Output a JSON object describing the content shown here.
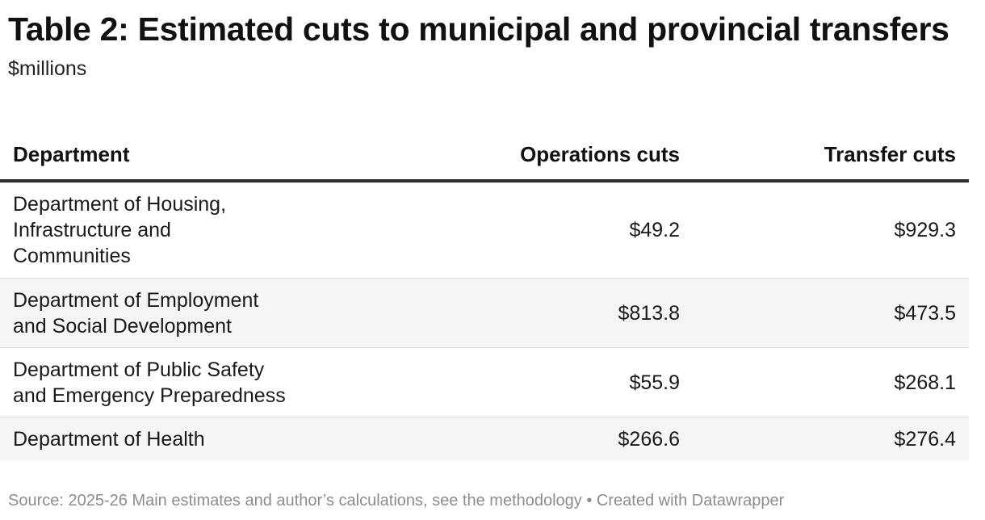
{
  "title": "Table 2: Estimated cuts to municipal and provincial transfers",
  "subtitle": "$millions",
  "chart_data": {
    "type": "table",
    "title": "Table 2: Estimated cuts to municipal and provincial transfers",
    "subtitle": "$millions",
    "columns": [
      "Department",
      "Operations cuts",
      "Transfer cuts"
    ],
    "rows": [
      {
        "department_lines": [
          "Department of Housing,",
          "Infrastructure and",
          "Communities"
        ],
        "operations": "$49.2",
        "transfers": "$929.3"
      },
      {
        "department_lines": [
          "Department of Employment",
          "and Social Development"
        ],
        "operations": "$813.8",
        "transfers": "$473.5"
      },
      {
        "department_lines": [
          "Department of Public Safety",
          "and Emergency Preparedness"
        ],
        "operations": "$55.9",
        "transfers": "$268.1"
      },
      {
        "department_lines": [
          "Department of Health"
        ],
        "operations": "$266.6",
        "transfers": "$276.4"
      }
    ]
  },
  "source": "Source: 2025-26 Main estimates and author’s calculations, see the methodology • Created with Datawrapper"
}
